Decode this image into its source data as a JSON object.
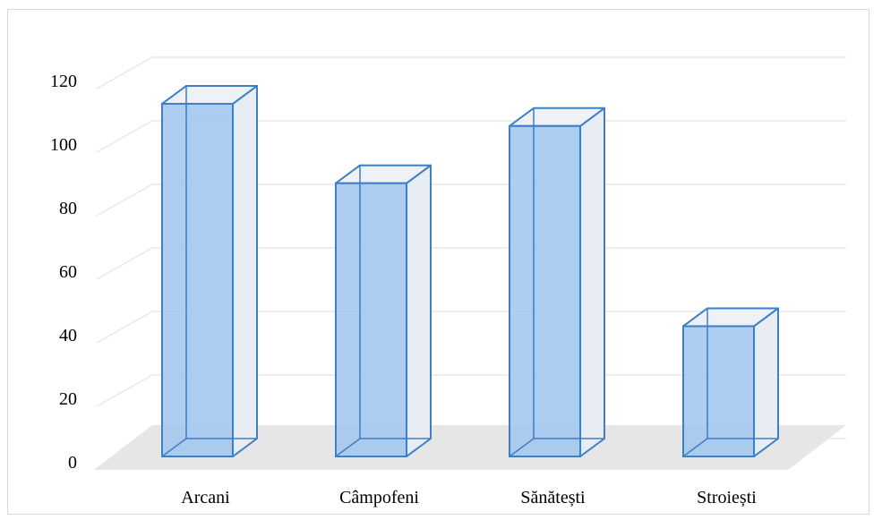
{
  "chart_data": {
    "type": "bar",
    "style": "3d-column",
    "categories": [
      "Arcani",
      "Câmpofeni",
      "Sănătești",
      "Stroiești"
    ],
    "values": [
      111,
      86,
      104,
      41
    ],
    "ylim": [
      0,
      120
    ],
    "yticks": [
      0,
      20,
      40,
      60,
      80,
      100,
      120
    ],
    "grid": true,
    "legend": "none"
  },
  "colors": {
    "bar_front": "#9fc5ee",
    "bar_stroke": "#3f7fc4",
    "bar_side": "#e8edf3",
    "bar_top": "#eef2f6",
    "floor": "#e6e6e6",
    "grid": "#e8e8e8"
  }
}
